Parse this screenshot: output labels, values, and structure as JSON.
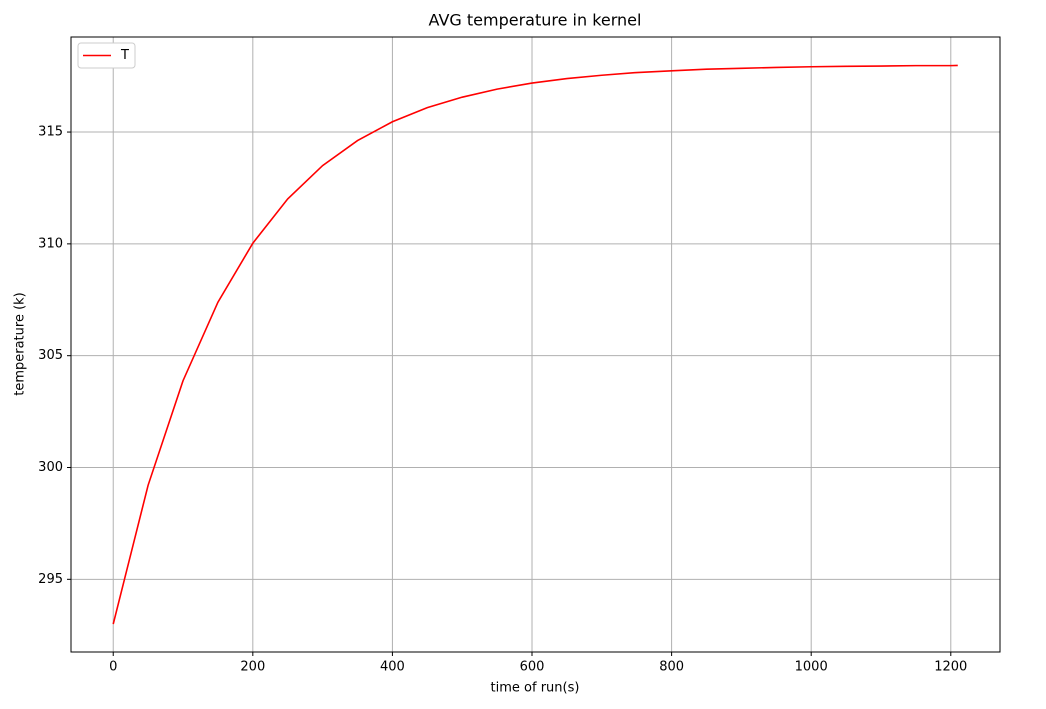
{
  "chart_data": {
    "type": "line",
    "title": "AVG temperature in kernel",
    "x_label": "time of run(s)",
    "y_label": "temperature (k)",
    "x": [
      0,
      50,
      100,
      150,
      200,
      250,
      300,
      350,
      400,
      450,
      500,
      550,
      600,
      650,
      700,
      750,
      800,
      850,
      900,
      950,
      1000,
      1050,
      1100,
      1150,
      1200,
      1210
    ],
    "series": [
      {
        "name": "T",
        "color": "#ff0000",
        "values": [
          293.0,
          299.21,
          303.88,
          307.39,
          310.03,
          312.01,
          313.5,
          314.62,
          315.46,
          316.09,
          316.56,
          316.92,
          317.19,
          317.39,
          317.54,
          317.66,
          317.74,
          317.81,
          317.85,
          317.89,
          317.92,
          317.94,
          317.95,
          317.97,
          317.97,
          317.98
        ]
      }
    ],
    "xlim": [
      -60.5,
      1270.5
    ],
    "ylim": [
      291.75,
      319.25
    ],
    "xticks": [
      0,
      200,
      400,
      600,
      800,
      1000,
      1200
    ],
    "yticks": [
      295,
      300,
      305,
      310,
      315
    ],
    "grid": true,
    "legend": "upper left"
  }
}
